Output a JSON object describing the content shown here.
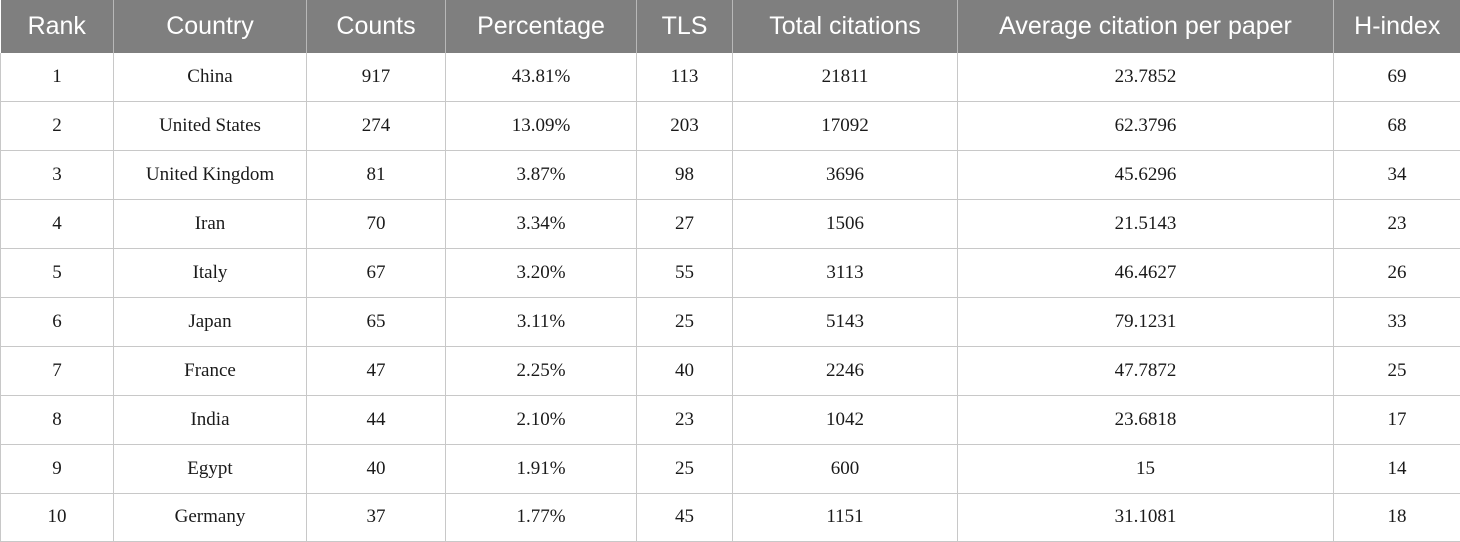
{
  "table": {
    "columns": [
      "Rank",
      "Country",
      "Counts",
      "Percentage",
      "TLS",
      "Total citations",
      "Average citation per paper",
      "H-index"
    ],
    "rows": [
      [
        "1",
        "China",
        "917",
        "43.81%",
        "113",
        "21811",
        "23.7852",
        "69"
      ],
      [
        "2",
        "United States",
        "274",
        "13.09%",
        "203",
        "17092",
        "62.3796",
        "68"
      ],
      [
        "3",
        "United Kingdom",
        "81",
        "3.87%",
        "98",
        "3696",
        "45.6296",
        "34"
      ],
      [
        "4",
        "Iran",
        "70",
        "3.34%",
        "27",
        "1506",
        "21.5143",
        "23"
      ],
      [
        "5",
        "Italy",
        "67",
        "3.20%",
        "55",
        "3113",
        "46.4627",
        "26"
      ],
      [
        "6",
        "Japan",
        "65",
        "3.11%",
        "25",
        "5143",
        "79.1231",
        "33"
      ],
      [
        "7",
        "France",
        "47",
        "2.25%",
        "40",
        "2246",
        "47.7872",
        "25"
      ],
      [
        "8",
        "India",
        "44",
        "2.10%",
        "23",
        "1042",
        "23.6818",
        "17"
      ],
      [
        "9",
        "Egypt",
        "40",
        "1.91%",
        "25",
        "600",
        "15",
        "14"
      ],
      [
        "10",
        "Germany",
        "37",
        "1.77%",
        "45",
        "1151",
        "31.1081",
        "18"
      ]
    ]
  }
}
